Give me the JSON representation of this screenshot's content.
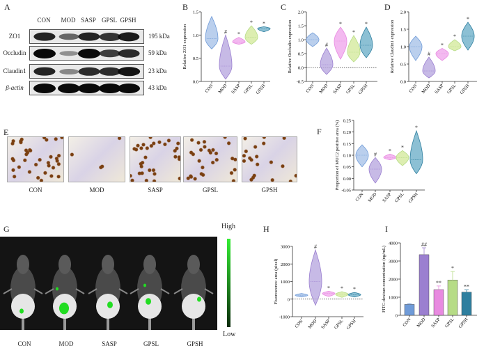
{
  "panels": {
    "A": "A",
    "B": "B",
    "C": "C",
    "D": "D",
    "E": "E",
    "F": "F",
    "G": "G",
    "H": "H",
    "I": "I"
  },
  "groups": [
    "CON",
    "MOD",
    "SASP",
    "GPSL",
    "GPSH"
  ],
  "group_colors": [
    "#6f9bd8",
    "#9b7fd0",
    "#e88ae0",
    "#b6dc86",
    "#2f7f9f"
  ],
  "western_blot": {
    "rows": [
      {
        "label": "ZO1",
        "kda": "195 kDa",
        "intensity": [
          0.85,
          0.45,
          0.85,
          0.75,
          0.9
        ]
      },
      {
        "label": "Occludin",
        "kda": "59 kDa",
        "intensity": [
          1.0,
          0.2,
          1.0,
          0.7,
          0.8
        ]
      },
      {
        "label": "Claudin1",
        "kda": "23 kDa",
        "intensity": [
          0.85,
          0.25,
          0.8,
          0.8,
          0.95
        ]
      },
      {
        "label": "β-actin",
        "kda": "43 kDa",
        "intensity": [
          1.0,
          1.0,
          1.0,
          1.0,
          1.0
        ]
      }
    ]
  },
  "imaging": {
    "high": "High",
    "low": "Low"
  },
  "chart_data": [
    {
      "panel": "B",
      "type": "violin",
      "ylabel": "Relative ZO1 expression",
      "ylim": [
        0,
        1.5
      ],
      "ticks": [
        "0.0",
        "0.5",
        "1.0",
        "1.5"
      ],
      "tick_values": [
        0,
        0.5,
        1,
        1.5
      ],
      "zero_line": false,
      "categories": [
        "CON",
        "MOD",
        "SASP",
        "GPSL",
        "GPSH"
      ],
      "series": [
        {
          "min": 0.7,
          "max": 1.4,
          "median": 0.92
        },
        {
          "min": 0.05,
          "max": 1.0,
          "median": 0.33
        },
        {
          "min": 0.8,
          "max": 0.95,
          "median": 0.85
        },
        {
          "min": 0.8,
          "max": 1.2,
          "median": 0.95
        },
        {
          "min": 1.07,
          "max": 1.18,
          "median": 1.14
        }
      ],
      "marks": [
        "",
        "#",
        "*",
        "*",
        "*"
      ]
    },
    {
      "panel": "C",
      "type": "violin",
      "ylabel": "Relative Occludin expression",
      "ylim": [
        -0.5,
        2.0
      ],
      "ticks": [
        "-0.5",
        "0.0",
        "0.5",
        "1.0",
        "1.5",
        "2.0"
      ],
      "tick_values": [
        -0.5,
        0,
        0.5,
        1,
        1.5,
        2
      ],
      "zero_line": true,
      "categories": [
        "CON",
        "MOD",
        "SASP",
        "GPSL",
        "GPSH"
      ],
      "series": [
        {
          "min": 0.75,
          "max": 1.25,
          "median": 1.0
        },
        {
          "min": -0.25,
          "max": 0.7,
          "median": 0.1
        },
        {
          "min": 0.3,
          "max": 1.45,
          "median": 0.95
        },
        {
          "min": 0.2,
          "max": 1.15,
          "median": 0.55
        },
        {
          "min": 0.35,
          "max": 1.45,
          "median": 0.8
        }
      ],
      "marks": [
        "",
        "#",
        "*",
        "*",
        "*"
      ]
    },
    {
      "panel": "D",
      "type": "violin",
      "ylabel": "Relative Claudin1 expression",
      "ylim": [
        0,
        2.0
      ],
      "ticks": [
        "0.0",
        "0.5",
        "1.0",
        "1.5",
        "2.0"
      ],
      "tick_values": [
        0,
        0.5,
        1,
        1.5,
        2
      ],
      "zero_line": false,
      "categories": [
        "CON",
        "MOD",
        "SASP",
        "GPSL",
        "GPSH"
      ],
      "series": [
        {
          "min": 0.6,
          "max": 1.3,
          "median": 1.0
        },
        {
          "min": 0.1,
          "max": 0.7,
          "median": 0.3
        },
        {
          "min": 0.6,
          "max": 0.95,
          "median": 0.8
        },
        {
          "min": 0.88,
          "max": 1.2,
          "median": 1.0
        },
        {
          "min": 0.9,
          "max": 1.7,
          "median": 1.3
        }
      ],
      "marks": [
        "",
        "#",
        "*",
        "*",
        "*"
      ]
    },
    {
      "panel": "F",
      "type": "violin",
      "ylabel": "Proportion of MUC2 positive area (%)",
      "ylim": [
        -0.05,
        0.25
      ],
      "ticks": [
        "-0.05",
        "0.00",
        "0.05",
        "0.10",
        "0.15",
        "0.20",
        "0.25"
      ],
      "tick_values": [
        -0.05,
        0,
        0.05,
        0.1,
        0.15,
        0.2,
        0.25
      ],
      "zero_line": false,
      "categories": [
        "CON",
        "MOD",
        "SASP",
        "GPSL",
        "GPSH"
      ],
      "series": [
        {
          "min": 0.05,
          "max": 0.145,
          "median": 0.1
        },
        {
          "min": -0.02,
          "max": 0.09,
          "median": 0.04
        },
        {
          "min": 0.08,
          "max": 0.105,
          "median": 0.09
        },
        {
          "min": 0.055,
          "max": 0.12,
          "median": 0.09
        },
        {
          "min": 0.02,
          "max": 0.205,
          "median": 0.08
        }
      ],
      "marks": [
        "",
        "#",
        "*",
        "*",
        "*"
      ]
    },
    {
      "panel": "H",
      "type": "violin",
      "ylabel": "Fluorescence area (pixel)",
      "ylim": [
        -1000,
        3000
      ],
      "ticks": [
        "-1000",
        "0",
        "1000",
        "2000",
        "3000"
      ],
      "tick_values": [
        -1000,
        0,
        1000,
        2000,
        3000
      ],
      "zero_line": true,
      "categories": [
        "CON",
        "MOD",
        "SASP",
        "GPSL",
        "GPSH"
      ],
      "series": [
        {
          "min": 120,
          "max": 320,
          "median": 220
        },
        {
          "min": -350,
          "max": 2800,
          "median": 1000
        },
        {
          "min": 150,
          "max": 450,
          "median": 320
        },
        {
          "min": 100,
          "max": 420,
          "median": 280
        },
        {
          "min": 120,
          "max": 380,
          "median": 250
        }
      ],
      "marks": [
        "",
        "#",
        "*",
        "*",
        "*"
      ]
    },
    {
      "panel": "I",
      "type": "bar",
      "ylabel": "FITC-dextran concentration (ng/mL)",
      "ylim": [
        0,
        4000
      ],
      "ticks": [
        "0",
        "1000",
        "2000",
        "3000",
        "4000"
      ],
      "tick_values": [
        0,
        1000,
        2000,
        3000,
        4000
      ],
      "categories": [
        "CON",
        "MOD",
        "SASP",
        "GPSL",
        "GPSH"
      ],
      "values": [
        600,
        3350,
        1420,
        1950,
        1280
      ],
      "errors": [
        40,
        380,
        200,
        470,
        120
      ],
      "marks": [
        "",
        "##",
        "**",
        "*",
        "**"
      ]
    }
  ]
}
